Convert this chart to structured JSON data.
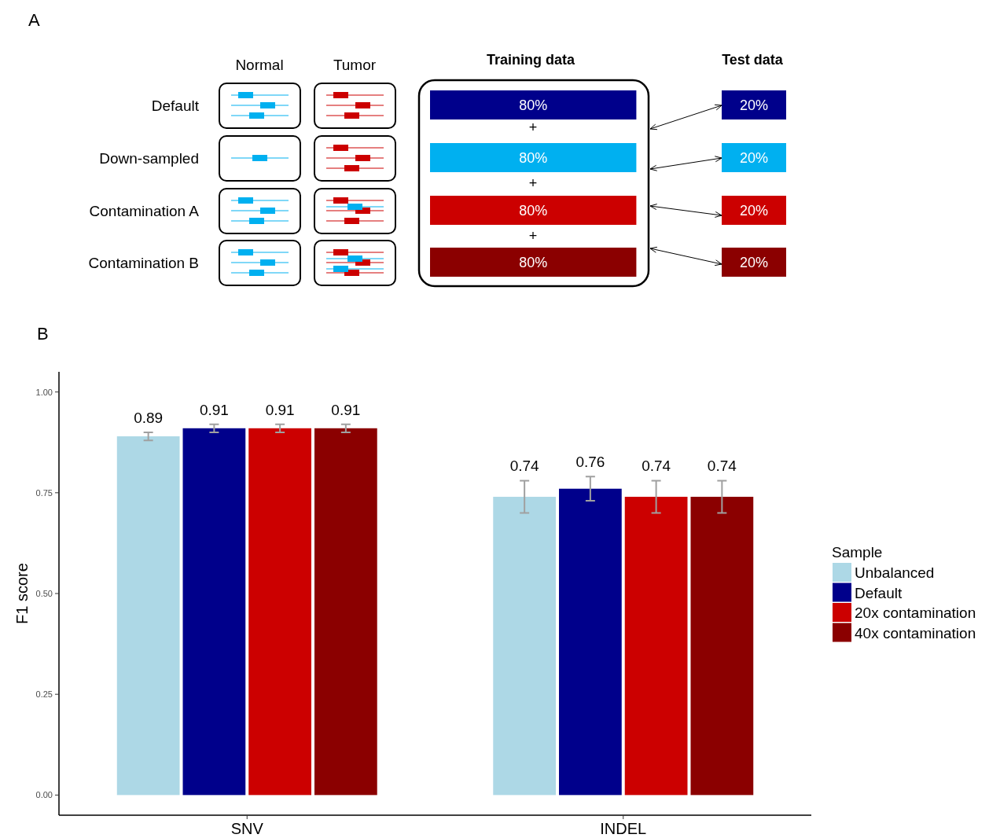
{
  "chart_data": [
    {
      "type": "other",
      "title": "A",
      "categories": [
        "Default",
        "Down-sampled",
        "Contamination A",
        "Contamination B"
      ],
      "annotations": [
        "Normal",
        "Tumor",
        "+",
        "+",
        "+"
      ],
      "series": [
        {
          "name": "Training data",
          "values": [
            80,
            80,
            80,
            80
          ],
          "value_labels": [
            "80%",
            "80%",
            "80%",
            "80%"
          ],
          "colors": [
            "#00008b",
            "#00b0f0",
            "#cc0000",
            "#8b0000"
          ]
        },
        {
          "name": "Test data",
          "values": [
            20,
            20,
            20,
            20
          ],
          "value_labels": [
            "20%",
            "20%",
            "20%",
            "20%"
          ],
          "colors": [
            "#00008b",
            "#00b0f0",
            "#cc0000",
            "#8b0000"
          ]
        }
      ]
    },
    {
      "type": "bar",
      "title": "B",
      "categories": [
        "SNV",
        "INDEL"
      ],
      "ylabel": "F1 score",
      "legend_title": "Sample",
      "legend": "right",
      "data_labels": true,
      "ylim": [
        -0.05,
        1.05
      ],
      "yticks": [
        {
          "value": 0,
          "label": "0.00"
        },
        {
          "value": 0.25,
          "label": "0.25"
        },
        {
          "value": 0.5,
          "label": "0.50"
        },
        {
          "value": 0.75,
          "label": "0.75"
        },
        {
          "value": 1,
          "label": "1.00"
        }
      ],
      "series": [
        {
          "name": "Unbalanced",
          "color": "#add8e6",
          "values": [
            0.89,
            0.74
          ],
          "errors": [
            0.01,
            0.04
          ]
        },
        {
          "name": "Default",
          "color": "#00008b",
          "values": [
            0.91,
            0.76
          ],
          "errors": [
            0.01,
            0.03
          ]
        },
        {
          "name": "20x contamination",
          "color": "#cc0000",
          "values": [
            0.91,
            0.74
          ],
          "errors": [
            0.01,
            0.04
          ]
        },
        {
          "name": "40x contamination",
          "color": "#8b0000",
          "values": [
            0.91,
            0.74
          ],
          "errors": [
            0.01,
            0.04
          ]
        }
      ]
    }
  ]
}
